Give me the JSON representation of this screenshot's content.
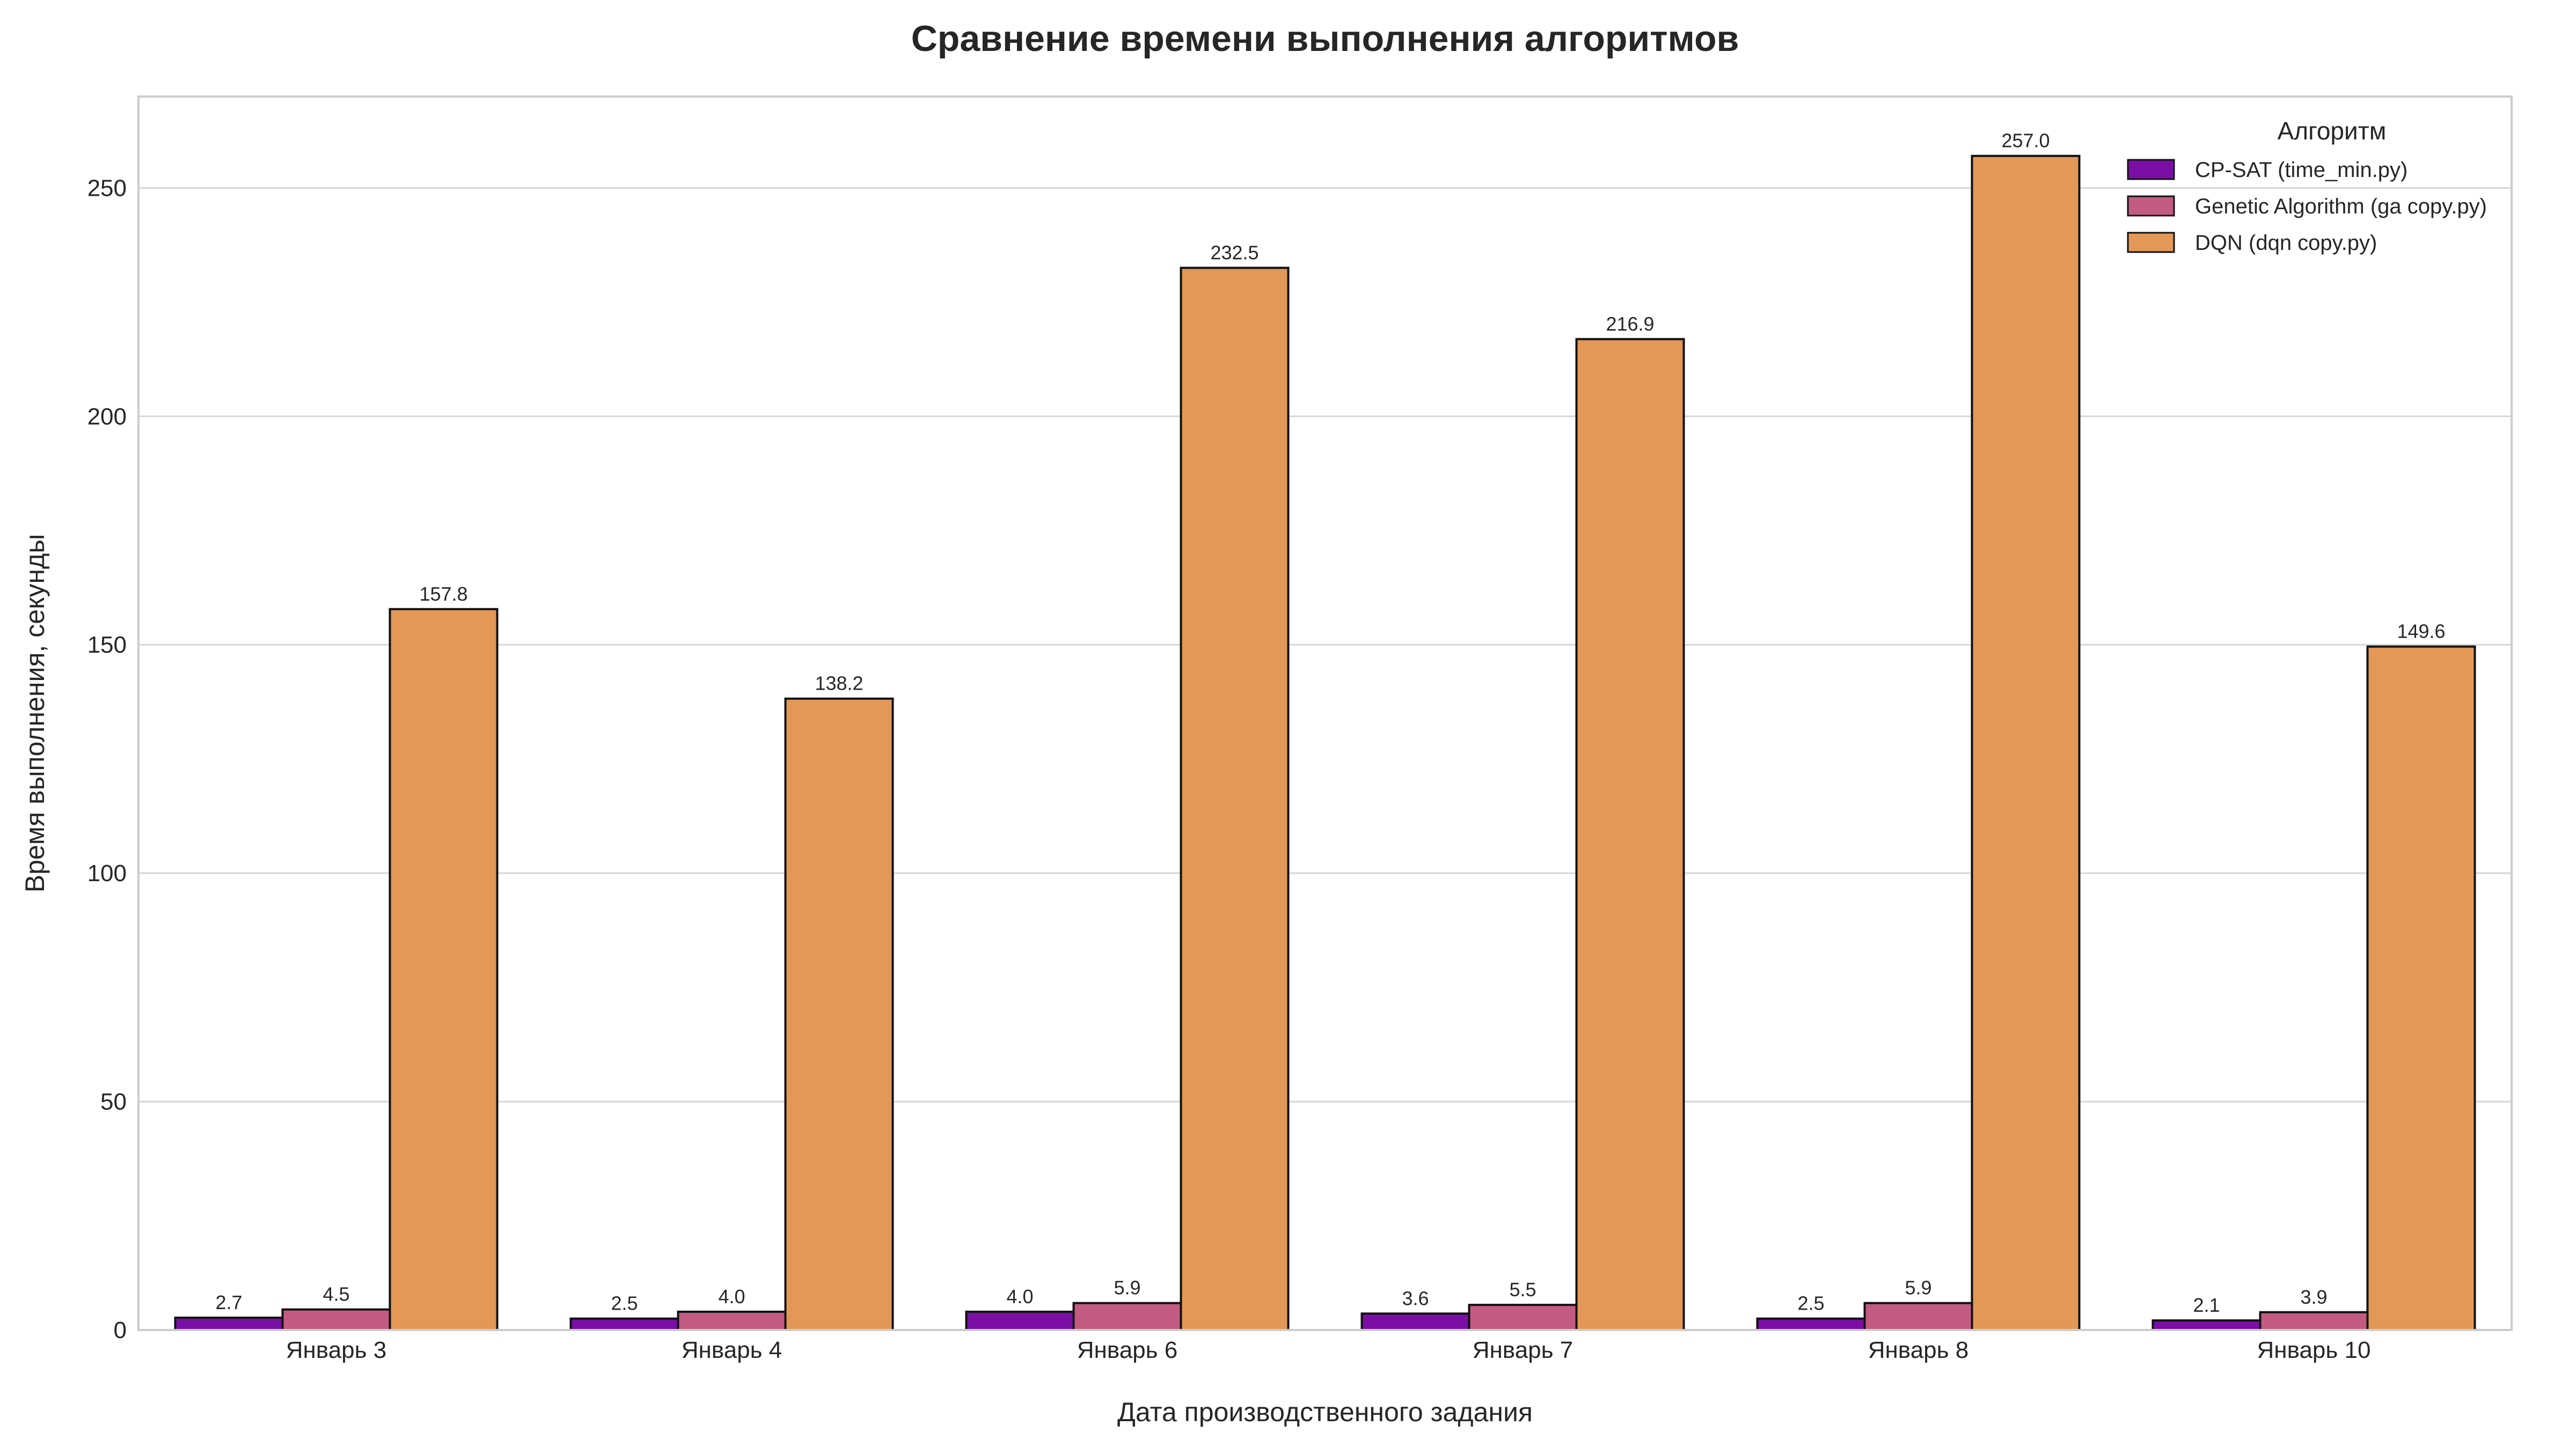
{
  "chart_data": {
    "type": "bar",
    "title": "Сравнение времени выполнения алгоритмов",
    "xlabel": "Дата производственного задания",
    "ylabel": "Время выполнения, секунды",
    "categories": [
      "Январь 3",
      "Январь 4",
      "Январь 6",
      "Январь 7",
      "Январь 8",
      "Январь 10"
    ],
    "series": [
      {
        "name": "CP-SAT (time_min.py)",
        "color": "#7a0ea5",
        "values": [
          2.7,
          2.5,
          4.0,
          3.6,
          2.5,
          2.1
        ]
      },
      {
        "name": "Genetic Algorithm (ga copy.py)",
        "color": "#c35a82",
        "values": [
          4.5,
          4.0,
          5.9,
          5.5,
          5.9,
          3.9
        ]
      },
      {
        "name": "DQN (dqn copy.py)",
        "color": "#e39858",
        "values": [
          157.8,
          138.2,
          232.5,
          216.9,
          257.0,
          149.6
        ]
      }
    ],
    "ylim": [
      0,
      270
    ],
    "yticks": [
      0,
      50,
      100,
      150,
      200,
      250
    ],
    "grid": "y",
    "legend": {
      "title": "Алгоритм",
      "position": "top-right"
    }
  }
}
